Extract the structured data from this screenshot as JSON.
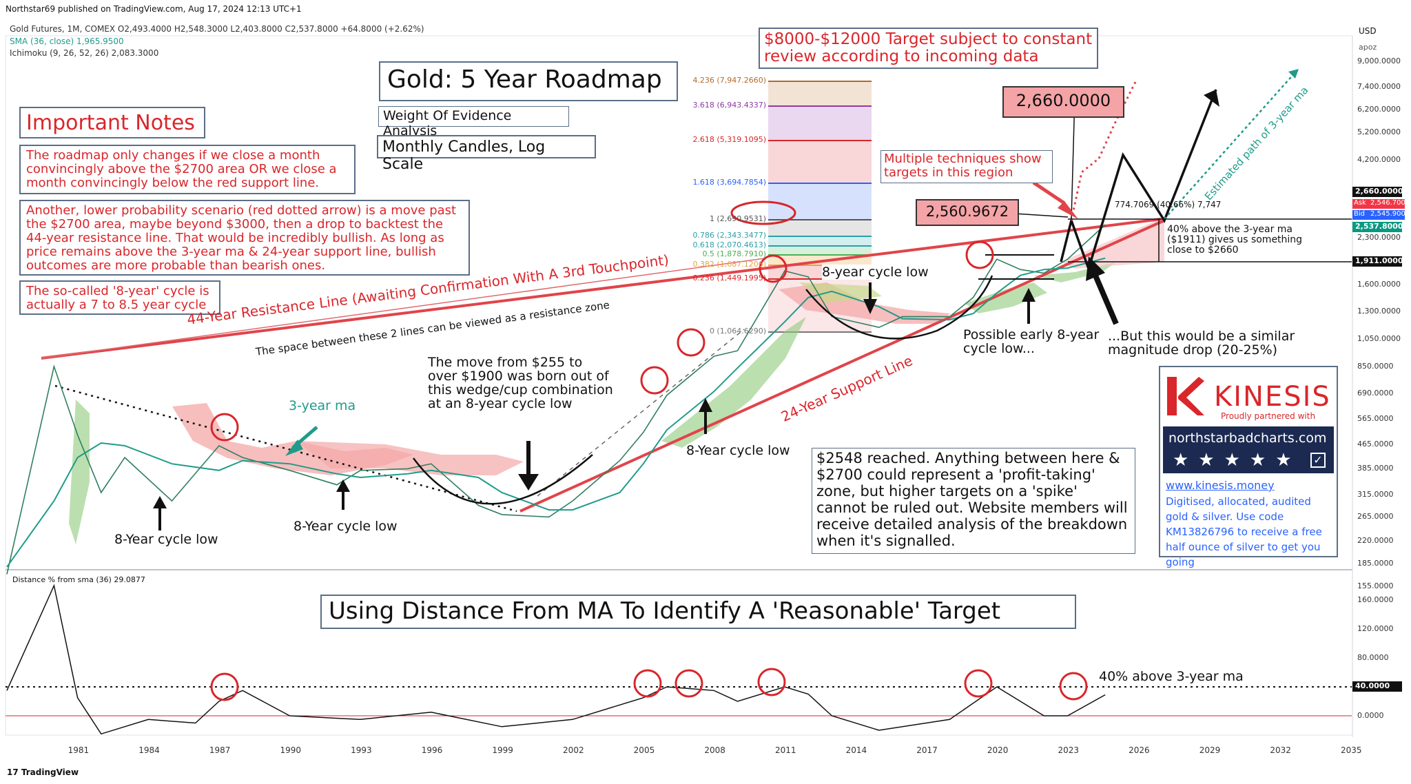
{
  "header": {
    "publisher": "Northstar69 published on TradingView.com, Aug 17, 2024 12:13 UTC+1",
    "symbol_line": "Gold Futures, 1M, COMEX  O2,493.4000  H2,548.3000  L2,403.8000  C2,537.8000  +64.8000 (+2.62%)",
    "sma_line": "SMA (36, close)  1,965.9500",
    "ichimoku_line": "Ichimoku (9, 26, 52, 26)  2,083.3000",
    "currency": "USD",
    "axis_mode": "apoz"
  },
  "title": {
    "main": "Gold: 5 Year Roadmap",
    "sub1": "Weight Of Evidence Analysis",
    "sub2": "Monthly Candles, Log Scale"
  },
  "target_box": "$8000-$12000 Target subject to constant review according to incoming data",
  "notes": {
    "title": "Important Notes",
    "note1": "The roadmap only changes if we close a month convincingly above the $2700 area OR we close a month convincingly below the red support line.",
    "note2": "Another, lower probability scenario (red dotted arrow) is a move past the $2700 area, maybe beyond $3000, then a drop to backtest the 44-year resistance line. That would be incredibly bullish. As long as price remains above the 3-year ma & 24-year support line, bullish outcomes are more probable than bearish ones.",
    "note3": "The so-called '8-year' cycle is actually a 7 to 8.5 year cycle"
  },
  "annotations": {
    "resistance_line": "44-Year Resistance Line (Awaiting Confirmation With A 3rd Touchpoint)",
    "resistance_zone": "The space between these 2 lines can be viewed as a resistance zone",
    "support_line": "24-Year Support Line",
    "three_year_ma": "3-year ma",
    "cycle_low_1": "8-Year cycle low",
    "cycle_low_2": "8-Year cycle low",
    "cycle_low_3": "8-Year cycle low",
    "cycle_low_4": "8-year cycle low",
    "wedge_text": "The move from  $255 to over $1900 was born out of this wedge/cup combination at an 8-year cycle low",
    "early_low": "Possible early 8-year cycle low...",
    "drop_text": "...But this would be a similar magnitude drop (20-25%)",
    "multiple": "Multiple techniques show targets in this region",
    "estimated_path": "Estimated path of 3-year ma",
    "forty_above": "40% above the 3-year ma ($1911) gives us something close to $2660",
    "measured": "774.7069 (40.66%) 7,747",
    "reached": "$2548 reached. Anything between here & $2700 could represent a 'profit-taking' zone, but higher targets on a 'spike' cannot be ruled out. Website members will receive detailed analysis of the breakdown when it's signalled.",
    "badge_2660": "2,660.0000",
    "badge_2560": "2,560.9672",
    "indicator_title": "Using Distance From MA To Identify A 'Reasonable' Target",
    "forty_line_label": "40% above 3-year ma"
  },
  "fib_levels": [
    {
      "label": "4.236 (7,947.2660)",
      "color": "#b06a2a"
    },
    {
      "label": "3.618 (6,943.4337)",
      "color": "#8e3aa0"
    },
    {
      "label": "2.618 (5,319.1095)",
      "color": "#d9262b"
    },
    {
      "label": "1.618 (3,694.7854)",
      "color": "#2962ff"
    },
    {
      "label": "1 (2,690.9531)",
      "color": "#555555"
    },
    {
      "label": "0.786 (2,343.3477)",
      "color": "#2a9fa8"
    },
    {
      "label": "0.618 (2,070.4613)",
      "color": "#2a9fa8"
    },
    {
      "label": "0.5 (1,878.7910)",
      "color": "#4caf50"
    },
    {
      "label": "0.382 (1,687.1206)",
      "color": "#e8a040"
    },
    {
      "label": "0.236 (1,449.1995)",
      "color": "#d9262b"
    },
    {
      "label": "0 (1,064.6290)",
      "color": "#777777"
    }
  ],
  "price_axis": {
    "ticks": [
      "9,000.0000",
      "7,400.0000",
      "6,200.0000",
      "5,200.0000",
      "4,200.0000",
      "2,300.0000",
      "1,600.0000",
      "1,300.0000",
      "1,050.0000",
      "850.0000",
      "690.0000",
      "565.0000",
      "465.0000",
      "385.0000",
      "315.0000",
      "265.0000",
      "220.0000",
      "185.0000",
      "155.0000"
    ],
    "tags": {
      "p2660": "2,660.0000",
      "ask_label": "Ask",
      "ask": "2,546.7000",
      "bid_label": "Bid",
      "bid": "2,545.9000",
      "last": "2,537.8000",
      "ma": "1,911.0000"
    }
  },
  "indicator": {
    "title": "Distance % from sma (36)  29.0877",
    "ticks": [
      "160.0000",
      "120.0000",
      "80.0000",
      "0.0000"
    ],
    "tag40": "40.0000"
  },
  "time_axis": [
    "1981",
    "1984",
    "1987",
    "1990",
    "1993",
    "1996",
    "1999",
    "2002",
    "2005",
    "2008",
    "2011",
    "2014",
    "2017",
    "2020",
    "2023",
    "2026",
    "2029",
    "2032",
    "2035"
  ],
  "kinesis": {
    "brand": "KINESIS",
    "partnered": "Proudly partnered with",
    "site_badge": "northstarbadcharts.com",
    "url": "www.kinesis.money",
    "desc": "Digitised, allocated, audited gold & silver. Use code KM13826796 to receive a free half ounce of silver to get you going"
  },
  "footer": "TradingView",
  "chart_data": {
    "type": "line",
    "title": "Gold: 5 Year Roadmap",
    "xlabel": "",
    "ylabel": "",
    "log_scale": true,
    "ylim": [
      155,
      10000
    ],
    "x": [
      1978,
      1980,
      1981,
      1982,
      1983,
      1985,
      1987,
      1988,
      1990,
      1992,
      1993,
      1995,
      1996,
      1998,
      1999,
      2001,
      2002,
      2004,
      2005,
      2006,
      2008,
      2009,
      2011,
      2012,
      2013,
      2015,
      2016,
      2018,
      2019,
      2020,
      2021,
      2022,
      2023,
      2024.6
    ],
    "series": [
      {
        "name": "Gold Futures",
        "values": [
          170,
          850,
          500,
          320,
          420,
          300,
          460,
          420,
          380,
          340,
          380,
          385,
          400,
          290,
          270,
          265,
          300,
          410,
          510,
          680,
          920,
          960,
          1780,
          1700,
          1250,
          1150,
          1250,
          1250,
          1450,
          1950,
          1800,
          1750,
          1950,
          2548
        ]
      },
      {
        "name": "3-year ma",
        "values": [
          180,
          300,
          420,
          470,
          460,
          400,
          380,
          410,
          400,
          370,
          360,
          370,
          380,
          360,
          320,
          280,
          280,
          320,
          400,
          520,
          700,
          840,
          1200,
          1450,
          1520,
          1350,
          1230,
          1220,
          1280,
          1500,
          1720,
          1800,
          1820,
          1966
        ]
      }
    ],
    "indicator": {
      "name": "Distance % from sma (36)",
      "x": [
        1978,
        1980,
        1981,
        1982,
        1984,
        1986,
        1987,
        1988,
        1990,
        1993,
        1996,
        1999,
        2002,
        2005,
        2006,
        2008,
        2009,
        2011,
        2012,
        2013,
        2015,
        2018,
        2020,
        2022,
        2023,
        2024.6
      ],
      "values": [
        35,
        180,
        25,
        -25,
        -5,
        -10,
        20,
        35,
        0,
        -5,
        5,
        -15,
        -5,
        25,
        40,
        35,
        20,
        40,
        30,
        0,
        -20,
        -5,
        40,
        0,
        0,
        29.0877
      ]
    }
  }
}
